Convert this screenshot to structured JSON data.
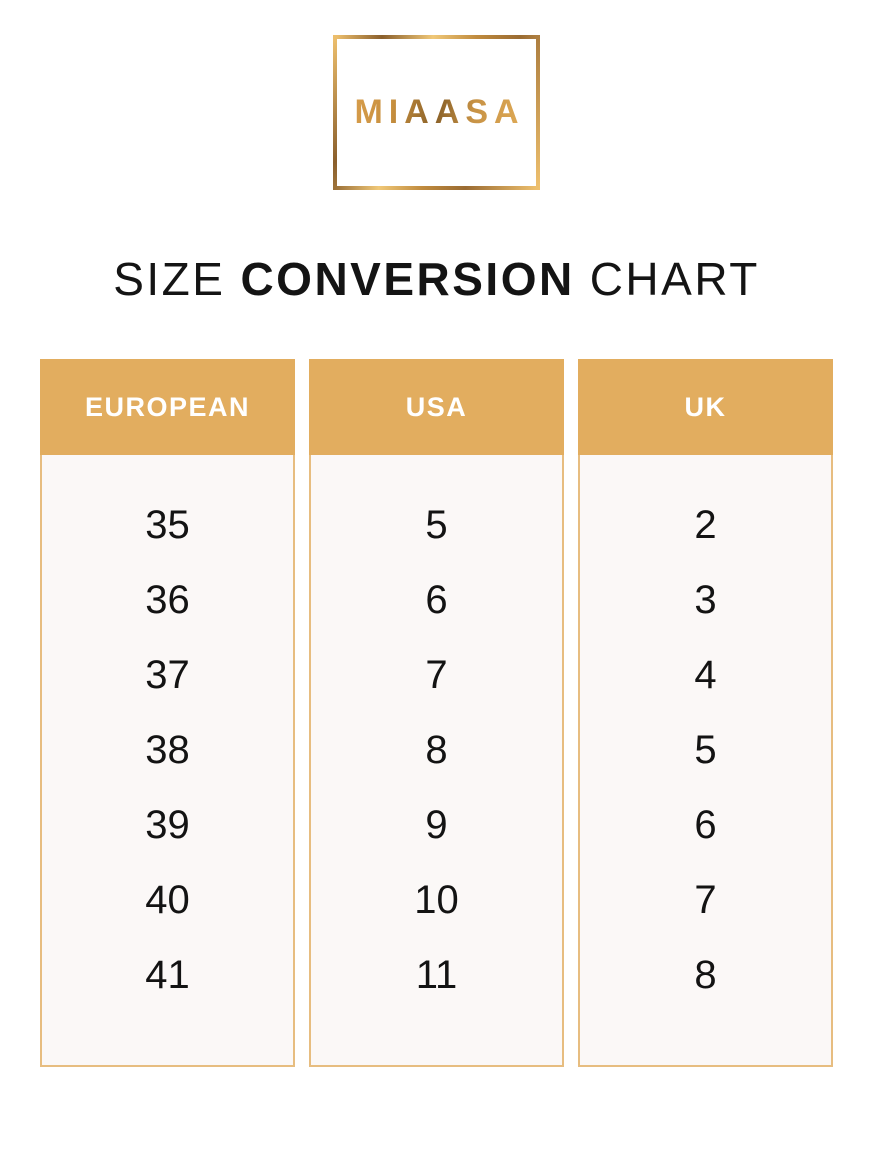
{
  "brand": {
    "logo_text": "MIAASA"
  },
  "title": {
    "part1": "SIZE",
    "part2": "CONVERSION",
    "part3": "CHART"
  },
  "chart_data": {
    "type": "table",
    "title": "SIZE CONVERSION CHART",
    "columns": [
      {
        "header": "EUROPEAN",
        "values": [
          "35",
          "36",
          "37",
          "38",
          "39",
          "40",
          "41"
        ]
      },
      {
        "header": "USA",
        "values": [
          "5",
          "6",
          "7",
          "8",
          "9",
          "10",
          "11"
        ]
      },
      {
        "header": "UK",
        "values": [
          "2",
          "3",
          "4",
          "5",
          "6",
          "7",
          "8"
        ]
      }
    ]
  },
  "colors": {
    "header_background": "#E2AD5F",
    "header_text": "#FFFFFF",
    "column_background": "#FBF8F7",
    "column_border": "#E7BD80",
    "title_text": "#141414",
    "logo_gold": "#C8903F"
  }
}
